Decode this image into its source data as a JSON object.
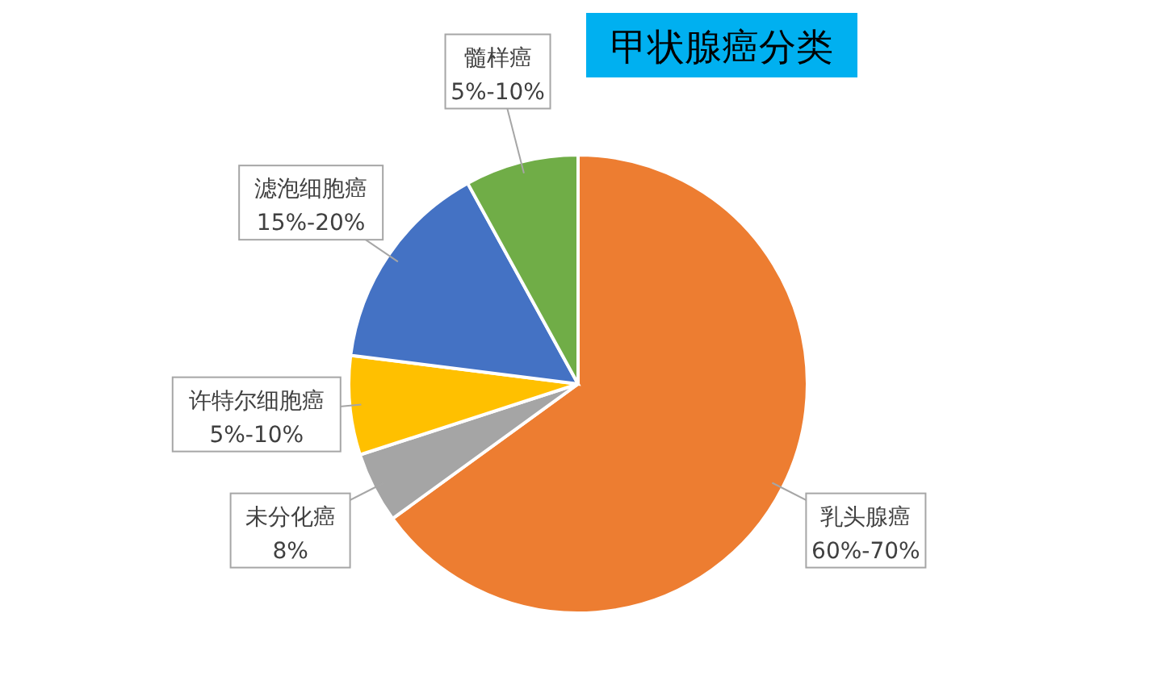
{
  "chart_data": {
    "type": "pie",
    "title": "甲状腺癌分类",
    "categories": [
      "乳头腺癌",
      "未分化癌",
      "许特尔细胞癌",
      "滤泡细胞癌",
      "髓样癌"
    ],
    "values": [
      65,
      5,
      7,
      15,
      8
    ],
    "colors": [
      "#ed7d31",
      "#a5a5a5",
      "#ffc000",
      "#4472c4",
      "#70ad47"
    ],
    "annotations": [
      {
        "text": "60%-70%",
        "x": "乳头腺癌"
      },
      {
        "text": "8%",
        "x": "未分化癌"
      },
      {
        "text": "5%-10%",
        "x": "许特尔细胞癌"
      },
      {
        "text": "15%-20%",
        "x": "滤泡细胞癌"
      },
      {
        "text": "5%-10%",
        "x": "髓样癌"
      }
    ],
    "legend": false
  }
}
